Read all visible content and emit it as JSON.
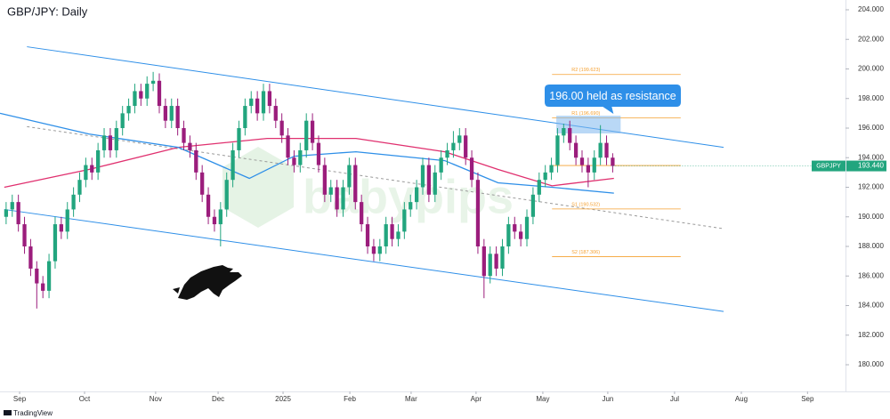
{
  "chart_data": {
    "type": "candlestick",
    "title": "GBP/JPY: Daily",
    "symbol": "GBPJPY",
    "last_price": {
      "value": 193.44,
      "label": "193.440"
    },
    "watermark": "babypips",
    "footer": "TradingView",
    "annotation": "196.00 held as resistance",
    "resistance_zone": {
      "x": [
        89.8,
        100.3
      ],
      "y": [
        195.64,
        196.84
      ]
    },
    "up_color": "#22a57e",
    "down_color": "#9b1d7c",
    "xlim": [
      -1,
      137
    ],
    "ylim": [
      179.3,
      204.6
    ],
    "xticks": [
      {
        "value": 2.2,
        "label": "Sep"
      },
      {
        "value": 12.8,
        "label": "Oct"
      },
      {
        "value": 24.4,
        "label": "Nov"
      },
      {
        "value": 34.6,
        "label": "Dec"
      },
      {
        "value": 45.2,
        "label": "2025"
      },
      {
        "value": 56.1,
        "label": "Feb"
      },
      {
        "value": 66.1,
        "label": "Mar"
      },
      {
        "value": 76.7,
        "label": "Apr"
      },
      {
        "value": 87.6,
        "label": "May"
      },
      {
        "value": 98.2,
        "label": "Jun"
      },
      {
        "value": 109.1,
        "label": "Jul"
      },
      {
        "value": 120,
        "label": "Aug"
      },
      {
        "value": 130.8,
        "label": "Sep"
      }
    ],
    "yticks": [
      {
        "value": 180,
        "label": "180.000"
      },
      {
        "value": 182,
        "label": "182.000"
      },
      {
        "value": 184,
        "label": "184.000"
      },
      {
        "value": 186,
        "label": "186.000"
      },
      {
        "value": 188,
        "label": "188.000"
      },
      {
        "value": 190,
        "label": "190.000"
      },
      {
        "value": 192,
        "label": "192.000"
      },
      {
        "value": 194,
        "label": "194.000"
      },
      {
        "value": 196,
        "label": "196.000"
      },
      {
        "value": 198,
        "label": "198.000"
      },
      {
        "value": 200,
        "label": "200.000"
      },
      {
        "value": 202,
        "label": "202.000"
      },
      {
        "value": 204,
        "label": "204.000"
      }
    ],
    "ohlc": [
      [
        190.0,
        191.0,
        189.5,
        190.5
      ],
      [
        190.5,
        191.5,
        190.0,
        191.0
      ],
      [
        191.0,
        191.5,
        189.0,
        189.5
      ],
      [
        189.5,
        190.0,
        187.5,
        188.0
      ],
      [
        188.0,
        188.5,
        186.0,
        186.5
      ],
      [
        186.5,
        187.0,
        183.8,
        185.5
      ],
      [
        185.5,
        186.0,
        184.5,
        185.0
      ],
      [
        185.0,
        187.5,
        184.5,
        187.0
      ],
      [
        187.0,
        190.0,
        186.5,
        189.5
      ],
      [
        189.5,
        190.0,
        188.5,
        189.0
      ],
      [
        189.0,
        191.0,
        188.5,
        190.5
      ],
      [
        190.5,
        192.0,
        190.0,
        191.5
      ],
      [
        191.5,
        193.0,
        191.0,
        192.5
      ],
      [
        192.5,
        194.0,
        192.0,
        193.5
      ],
      [
        193.5,
        194.0,
        192.5,
        193.0
      ],
      [
        193.0,
        195.0,
        192.5,
        194.5
      ],
      [
        194.5,
        196.0,
        194.0,
        195.5
      ],
      [
        195.5,
        196.0,
        194.0,
        194.5
      ],
      [
        194.5,
        196.5,
        194.0,
        196.0
      ],
      [
        196.0,
        197.5,
        195.5,
        197.0
      ],
      [
        197.0,
        198.0,
        196.5,
        197.5
      ],
      [
        197.5,
        199.0,
        197.0,
        198.5
      ],
      [
        198.5,
        199.0,
        197.5,
        198.0
      ],
      [
        198.0,
        199.5,
        197.5,
        199.0
      ],
      [
        199.0,
        199.8,
        198.5,
        199.2
      ],
      [
        199.2,
        199.7,
        197.0,
        197.5
      ],
      [
        197.5,
        198.0,
        196.0,
        196.5
      ],
      [
        196.5,
        198.0,
        196.0,
        197.5
      ],
      [
        197.5,
        198.0,
        195.5,
        196.0
      ],
      [
        196.0,
        196.5,
        194.5,
        195.0
      ],
      [
        195.0,
        195.5,
        194.0,
        194.5
      ],
      [
        194.5,
        195.0,
        192.5,
        193.0
      ],
      [
        193.0,
        193.5,
        191.0,
        191.5
      ],
      [
        191.5,
        192.0,
        189.5,
        190.0
      ],
      [
        190.0,
        190.5,
        189.0,
        189.5
      ],
      [
        189.5,
        191.0,
        188.0,
        190.5
      ],
      [
        190.5,
        193.0,
        190.0,
        192.5
      ],
      [
        192.5,
        195.0,
        192.0,
        194.5
      ],
      [
        194.5,
        196.5,
        194.0,
        196.0
      ],
      [
        196.0,
        198.0,
        195.5,
        197.5
      ],
      [
        197.5,
        198.5,
        197.0,
        198.0
      ],
      [
        198.0,
        198.5,
        196.5,
        197.0
      ],
      [
        197.0,
        199.0,
        196.5,
        198.5
      ],
      [
        198.5,
        199.0,
        197.0,
        197.5
      ],
      [
        197.5,
        198.0,
        196.0,
        196.5
      ],
      [
        196.5,
        197.0,
        195.0,
        195.5
      ],
      [
        195.5,
        196.0,
        193.5,
        194.0
      ],
      [
        194.0,
        194.5,
        193.0,
        193.5
      ],
      [
        193.5,
        195.0,
        193.0,
        194.5
      ],
      [
        194.5,
        197.0,
        194.0,
        196.5
      ],
      [
        196.5,
        197.0,
        194.5,
        195.0
      ],
      [
        195.0,
        195.5,
        193.0,
        193.5
      ],
      [
        193.5,
        194.0,
        191.0,
        191.5
      ],
      [
        191.5,
        192.5,
        191.0,
        192.0
      ],
      [
        192.0,
        192.5,
        190.0,
        190.5
      ],
      [
        190.5,
        192.5,
        190.0,
        192.0
      ],
      [
        192.0,
        194.0,
        191.5,
        193.5
      ],
      [
        193.5,
        194.0,
        190.5,
        191.0
      ],
      [
        191.0,
        191.5,
        189.0,
        189.5
      ],
      [
        189.5,
        190.0,
        187.5,
        188.0
      ],
      [
        188.0,
        188.5,
        187.0,
        187.5
      ],
      [
        187.5,
        188.5,
        187.0,
        188.0
      ],
      [
        188.0,
        190.0,
        187.5,
        189.5
      ],
      [
        189.5,
        190.0,
        188.0,
        188.5
      ],
      [
        188.5,
        189.5,
        188.0,
        189.0
      ],
      [
        189.0,
        191.0,
        188.5,
        190.5
      ],
      [
        190.5,
        191.5,
        190.0,
        191.0
      ],
      [
        191.0,
        192.5,
        190.5,
        192.0
      ],
      [
        192.0,
        194.0,
        191.5,
        193.5
      ],
      [
        193.5,
        194.0,
        191.0,
        191.5
      ],
      [
        191.5,
        193.5,
        191.0,
        193.0
      ],
      [
        193.0,
        194.5,
        192.5,
        194.0
      ],
      [
        194.0,
        195.0,
        193.5,
        194.5
      ],
      [
        194.5,
        195.8,
        194.0,
        195.0
      ],
      [
        195.0,
        196.0,
        194.5,
        195.5
      ],
      [
        195.5,
        196.0,
        193.5,
        194.0
      ],
      [
        194.0,
        194.5,
        192.0,
        192.5
      ],
      [
        192.5,
        193.0,
        187.5,
        188.0
      ],
      [
        188.0,
        188.5,
        184.5,
        186.0
      ],
      [
        186.0,
        188.0,
        185.5,
        187.5
      ],
      [
        187.5,
        188.0,
        186.0,
        186.5
      ],
      [
        186.5,
        188.5,
        186.0,
        188.0
      ],
      [
        188.0,
        190.0,
        187.5,
        189.5
      ],
      [
        189.5,
        190.0,
        188.5,
        189.0
      ],
      [
        189.0,
        189.5,
        188.0,
        188.5
      ],
      [
        188.5,
        190.5,
        188.0,
        190.0
      ],
      [
        190.0,
        192.0,
        189.5,
        191.5
      ],
      [
        191.5,
        193.0,
        191.0,
        192.5
      ],
      [
        192.5,
        193.5,
        192.0,
        193.0
      ],
      [
        193.0,
        194.0,
        192.5,
        193.5
      ],
      [
        193.5,
        196.0,
        193.0,
        195.5
      ],
      [
        195.5,
        196.3,
        195.0,
        196.0
      ],
      [
        196.0,
        196.5,
        194.5,
        195.0
      ],
      [
        195.0,
        195.5,
        193.5,
        194.0
      ],
      [
        194.0,
        194.5,
        193.0,
        193.5
      ],
      [
        193.5,
        194.0,
        192.0,
        193.0
      ],
      [
        193.0,
        194.5,
        192.5,
        194.0
      ],
      [
        194.0,
        196.2,
        193.5,
        195.0
      ],
      [
        195.0,
        195.5,
        193.5,
        194.0
      ],
      [
        194.0,
        194.3,
        193.0,
        193.44
      ]
    ],
    "moving_averages": [
      {
        "color": "#e0306f",
        "x": [
          -0.3,
          13.5,
          28.1,
          42.6,
          57.1,
          71.6,
          80.3,
          89.1,
          99.2
        ],
        "values": [
          192.0,
          193.2,
          194.7,
          195.3,
          195.3,
          194.4,
          193.2,
          192.1,
          192.6
        ]
      },
      {
        "color": "#2e8fe8",
        "x": [
          -1,
          13.5,
          28.1,
          39.7,
          47,
          57.1,
          71.6,
          80.3,
          89.1,
          99.2
        ],
        "values": [
          197.0,
          195.6,
          194.7,
          192.6,
          194.1,
          194.4,
          193.8,
          192.3,
          192.0,
          191.6
        ]
      }
    ],
    "trend_lines": [
      {
        "color": "#2e8fe8",
        "dashed": false,
        "x": [
          3.4,
          117.1
        ],
        "values": [
          201.5,
          194.7
        ]
      },
      {
        "color": "#2e8fe8",
        "dashed": false,
        "x": [
          -0.3,
          117.1
        ],
        "values": [
          190.5,
          183.6
        ]
      },
      {
        "color": "#9a9a9a",
        "dashed": true,
        "x": [
          3.4,
          117.1
        ],
        "values": [
          196.1,
          189.2
        ]
      }
    ],
    "pivots": {
      "color": "#f5a030",
      "x": [
        89.1,
        110.1
      ],
      "levels": [
        {
          "label": "R2 (199.623)",
          "value": 199.623
        },
        {
          "label": "R1 (196.690)",
          "value": 196.69
        },
        {
          "label": null,
          "value": 193.47
        },
        {
          "label": "S1 (190.532)",
          "value": 190.532
        },
        {
          "label": "S2 (187.306)",
          "value": 187.306
        }
      ]
    }
  }
}
